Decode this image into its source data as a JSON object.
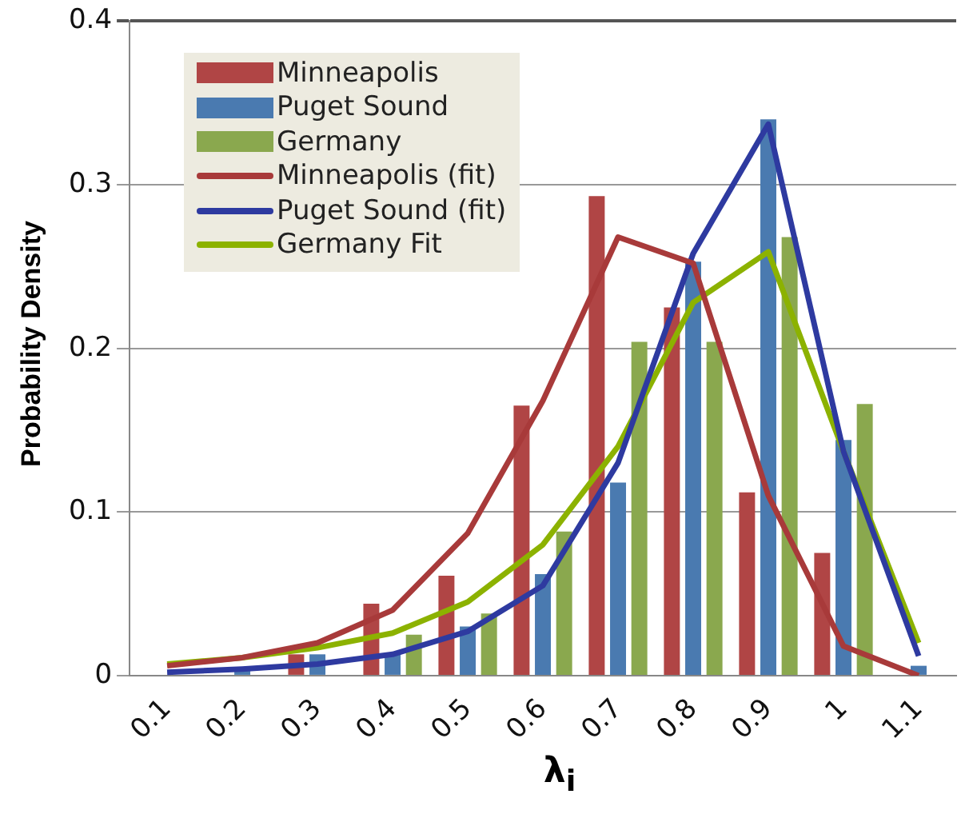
{
  "chart_data": {
    "type": "bar",
    "xlabel": "λ$_{i}$",
    "ylabel": "Probability Density",
    "categories": [
      "0.1",
      "0.2",
      "0.3",
      "0.4",
      "0.5",
      "0.6",
      "0.7",
      "0.8",
      "0.9",
      "1",
      "1.1"
    ],
    "series": [
      {
        "name": "Minneapolis",
        "color": "#b04545",
        "values": [
          0,
          null,
          0.013,
          0.044,
          0.061,
          0.165,
          0.293,
          0.225,
          0.112,
          0.075,
          0
        ]
      },
      {
        "name": "Puget Sound",
        "color": "#4a7ab0",
        "values": [
          0,
          0.003,
          0.013,
          0.013,
          0.03,
          0.062,
          0.118,
          0.253,
          0.34,
          0.144,
          0.006
        ]
      },
      {
        "name": "Germany",
        "color": "#8aa84e",
        "values": [
          0,
          0,
          0,
          0.025,
          0.038,
          0.088,
          0.204,
          0.204,
          0.268,
          0.166,
          0
        ]
      },
      {
        "name": "Minneapolis (fit)",
        "type": "line",
        "color": "#a83a3a",
        "values": [
          0.006,
          0.011,
          0.02,
          0.04,
          0.087,
          0.168,
          0.268,
          0.252,
          0.11,
          0.018,
          0
        ]
      },
      {
        "name": "Puget Sound (fit)",
        "type": "line",
        "color": "#2e3aa0",
        "values": [
          0.002,
          0.004,
          0.007,
          0.013,
          0.027,
          0.055,
          0.13,
          0.258,
          0.337,
          0.137,
          0.012
        ]
      },
      {
        "name": "Germany Fit",
        "type": "line",
        "color": "#8cb200",
        "values": [
          0.007,
          0.011,
          0.017,
          0.026,
          0.045,
          0.08,
          0.14,
          0.228,
          0.259,
          0.137,
          0.02
        ]
      }
    ],
    "ylim": [
      0,
      0.4
    ],
    "yticks": [
      0,
      0.1,
      0.2,
      0.3,
      0.4
    ],
    "grid": "y",
    "legend": "top left",
    "marker": "none"
  }
}
